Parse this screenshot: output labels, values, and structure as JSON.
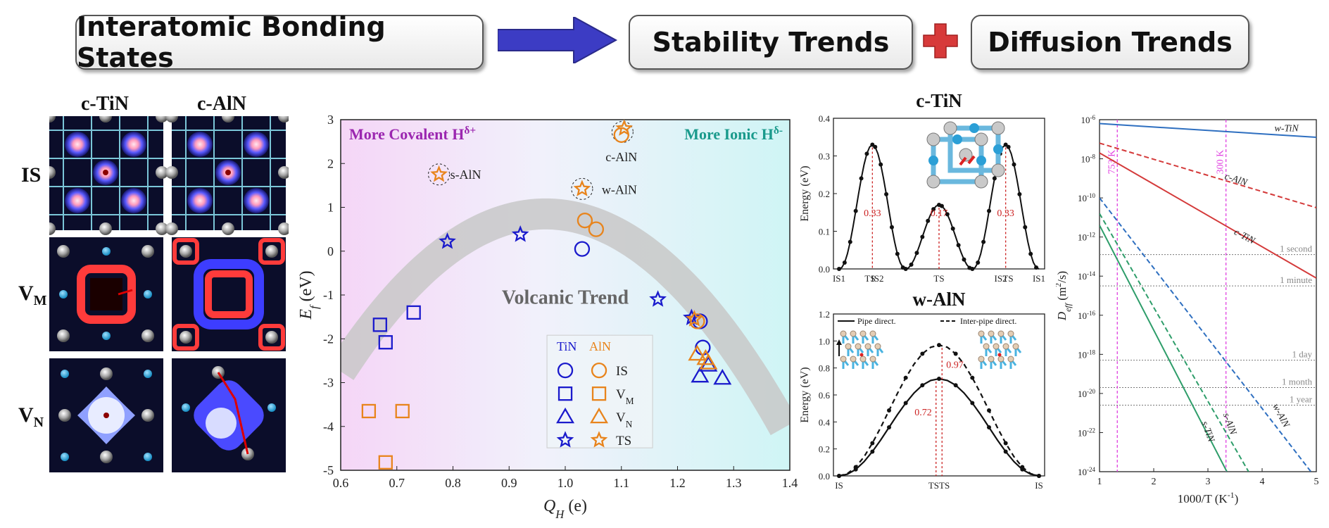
{
  "header": {
    "box1": "Interatomic Bonding States",
    "box2": "Stability Trends",
    "box3": "Diffusion Trends"
  },
  "left_panels": {
    "col1": "c-TiN",
    "col2": "c-AlN",
    "row1": "IS",
    "row2_main": "V",
    "row2_sub": "M",
    "row3_main": "V",
    "row3_sub": "N"
  },
  "colors": {
    "tin": "#1a1acc",
    "aln": "#e8841c",
    "purple_text": "#9b27b0",
    "teal_text": "#1a9a8c"
  },
  "chart_data": [
    {
      "type": "scatter",
      "title": "",
      "xlabel_main": "Q",
      "xlabel_sub": "H",
      "xlabel_unit": " (e)",
      "ylabel_main": "E",
      "ylabel_sub": "f",
      "ylabel_unit": " (eV)",
      "xlim": [
        0.6,
        1.4
      ],
      "ylim": [
        -5,
        3
      ],
      "xticks": [
        "0.6",
        "0.7",
        "0.8",
        "0.9",
        "1.0",
        "1.1",
        "1.2",
        "1.3",
        "1.4"
      ],
      "yticks": [
        "3",
        "2",
        "1",
        "0",
        "-1",
        "-2",
        "-3",
        "-4",
        "-5"
      ],
      "left_label": "More Covalent H",
      "left_label_sup": "δ+",
      "right_label": "More Ionic H",
      "right_label_sup": "δ-",
      "trend_label": "Volcanic Trend",
      "legend_header": [
        "TiN",
        "AlN"
      ],
      "legend_rows": [
        {
          "marker": "circle",
          "label": "IS"
        },
        {
          "marker": "square",
          "label": "V",
          "sub": "M"
        },
        {
          "marker": "triangle",
          "label": "V",
          "sub": "N"
        },
        {
          "marker": "star",
          "label": "TS"
        }
      ],
      "annotations": [
        {
          "text": "s-AlN",
          "x": 0.77,
          "y": 1.75
        },
        {
          "text": "w-AlN",
          "x": 1.04,
          "y": 1.4
        },
        {
          "text": "c-AlN",
          "x": 1.1,
          "y": 2.15
        }
      ],
      "series": [
        {
          "name": "TiN IS",
          "marker": "circle",
          "color": "tin",
          "points": [
            [
              1.03,
              0.05
            ],
            [
              1.24,
              -1.6
            ],
            [
              1.245,
              -2.2
            ]
          ]
        },
        {
          "name": "AlN IS",
          "marker": "circle",
          "color": "aln",
          "points": [
            [
              1.035,
              0.7
            ],
            [
              1.055,
              0.5
            ],
            [
              1.1,
              2.65
            ],
            [
              1.235,
              -1.6
            ]
          ]
        },
        {
          "name": "TiN VM",
          "marker": "square",
          "color": "tin",
          "points": [
            [
              0.67,
              -1.68
            ],
            [
              0.68,
              -2.08
            ],
            [
              0.73,
              -1.4
            ]
          ]
        },
        {
          "name": "AlN VM",
          "marker": "square",
          "color": "aln",
          "points": [
            [
              0.65,
              -3.65
            ],
            [
              0.71,
              -3.65
            ],
            [
              0.68,
              -4.82
            ]
          ]
        },
        {
          "name": "TiN VN",
          "marker": "triangle",
          "color": "tin",
          "points": [
            [
              1.24,
              -2.85
            ],
            [
              1.255,
              -2.6
            ],
            [
              1.28,
              -2.9
            ]
          ]
        },
        {
          "name": "AlN VN",
          "marker": "triangle",
          "color": "aln",
          "points": [
            [
              1.235,
              -2.35
            ],
            [
              1.25,
              -2.45
            ],
            [
              1.255,
              -2.55
            ]
          ]
        },
        {
          "name": "TiN TS",
          "marker": "star",
          "color": "tin",
          "points": [
            [
              0.79,
              0.22
            ],
            [
              0.92,
              0.38
            ],
            [
              1.165,
              -1.1
            ],
            [
              1.225,
              -1.52
            ]
          ]
        },
        {
          "name": "AlN TS",
          "marker": "star",
          "color": "aln",
          "points": [
            [
              0.775,
              1.75
            ],
            [
              1.03,
              1.42
            ],
            [
              1.105,
              2.8
            ],
            [
              1.23,
              -1.55
            ]
          ]
        }
      ]
    },
    {
      "type": "line",
      "title": "c-TiN",
      "ylabel": "Energy (eV)",
      "ylim": [
        0.0,
        0.4
      ],
      "yticks": [
        "0.0",
        "0.1",
        "0.2",
        "0.3",
        "0.4"
      ],
      "xticks": [
        "IS1",
        "TS",
        "IS2",
        "TS",
        "IS2",
        "TS",
        "IS1"
      ],
      "barrier_labels": [
        "0.33",
        "0.17",
        "0.33"
      ],
      "series": [
        {
          "name": "path",
          "x": [
            0,
            1,
            2,
            3,
            4,
            5,
            6
          ],
          "y": [
            0.0,
            0.33,
            0.0,
            0.17,
            0.0,
            0.33,
            0.0
          ]
        }
      ]
    },
    {
      "type": "line",
      "title": "w-AlN",
      "ylabel": "Energy (eV)",
      "ylim": [
        0.0,
        1.2
      ],
      "yticks": [
        "0.0",
        "0.2",
        "0.4",
        "0.6",
        "0.8",
        "1.0",
        "1.2"
      ],
      "xticks": [
        "IS",
        "TSTS",
        "IS"
      ],
      "legend": [
        "Pipe direct.",
        "Inter-pipe direct."
      ],
      "barrier_labels": [
        "0.72",
        "0.97"
      ],
      "series": [
        {
          "name": "Pipe direct.",
          "style": "solid",
          "barrier": 0.72
        },
        {
          "name": "Inter-pipe direct.",
          "style": "dashed",
          "barrier": 0.97
        }
      ]
    },
    {
      "type": "line",
      "title": "",
      "xlabel": "1000/T (K",
      "xlabel_sup": "-1",
      "xlabel_end": ")",
      "ylabel_main": "D",
      "ylabel_sub": "eff",
      "ylabel_unit": " (m",
      "ylabel_sup": "2",
      "ylabel_end": "/s)",
      "xlim": [
        1,
        5
      ],
      "ylim_log10": [
        -24,
        -6
      ],
      "xticks": [
        "1",
        "2",
        "3",
        "4",
        "5"
      ],
      "yticks": [
        "10^-6",
        "10^-8",
        "10^-10",
        "10^-12",
        "10^-14",
        "10^-16",
        "10^-18",
        "10^-20",
        "10^-22",
        "10^-24"
      ],
      "vlines": [
        {
          "x": 1.328,
          "label": "753 K"
        },
        {
          "x": 3.333,
          "label": "300 K"
        }
      ],
      "time_lines": [
        {
          "label": "1 second",
          "log10": -12.9
        },
        {
          "label": "1 minute",
          "log10": -14.5
        },
        {
          "label": "1 day",
          "log10": -18.3
        },
        {
          "label": "1 month",
          "log10": -19.7
        },
        {
          "label": "1 year",
          "log10": -20.6
        }
      ],
      "series": [
        {
          "name": "w-TiN",
          "color": "#2e6fc0",
          "style": "solid",
          "points": [
            [
              1,
              -6.2
            ],
            [
              5,
              -6.9
            ]
          ]
        },
        {
          "name": "c-AlN",
          "color": "#d43a3a",
          "style": "dashed",
          "points": [
            [
              1,
              -7.2
            ],
            [
              5,
              -10.5
            ]
          ]
        },
        {
          "name": "c-TiN",
          "color": "#d43a3a",
          "style": "solid",
          "points": [
            [
              1,
              -7.7
            ],
            [
              5,
              -14.1
            ]
          ]
        },
        {
          "name": "w-AlN",
          "color": "#2e6fc0",
          "style": "dashed",
          "points": [
            [
              1,
              -10.0
            ],
            [
              4.9,
              -24
            ]
          ]
        },
        {
          "name": "s-AlN",
          "color": "#2e9d6a",
          "style": "dashed",
          "points": [
            [
              1,
              -10.8
            ],
            [
              3.75,
              -24
            ]
          ]
        },
        {
          "name": "s-TiN",
          "color": "#2e9d6a",
          "style": "solid",
          "points": [
            [
              1,
              -11.4
            ],
            [
              3.35,
              -24
            ]
          ]
        }
      ]
    }
  ]
}
